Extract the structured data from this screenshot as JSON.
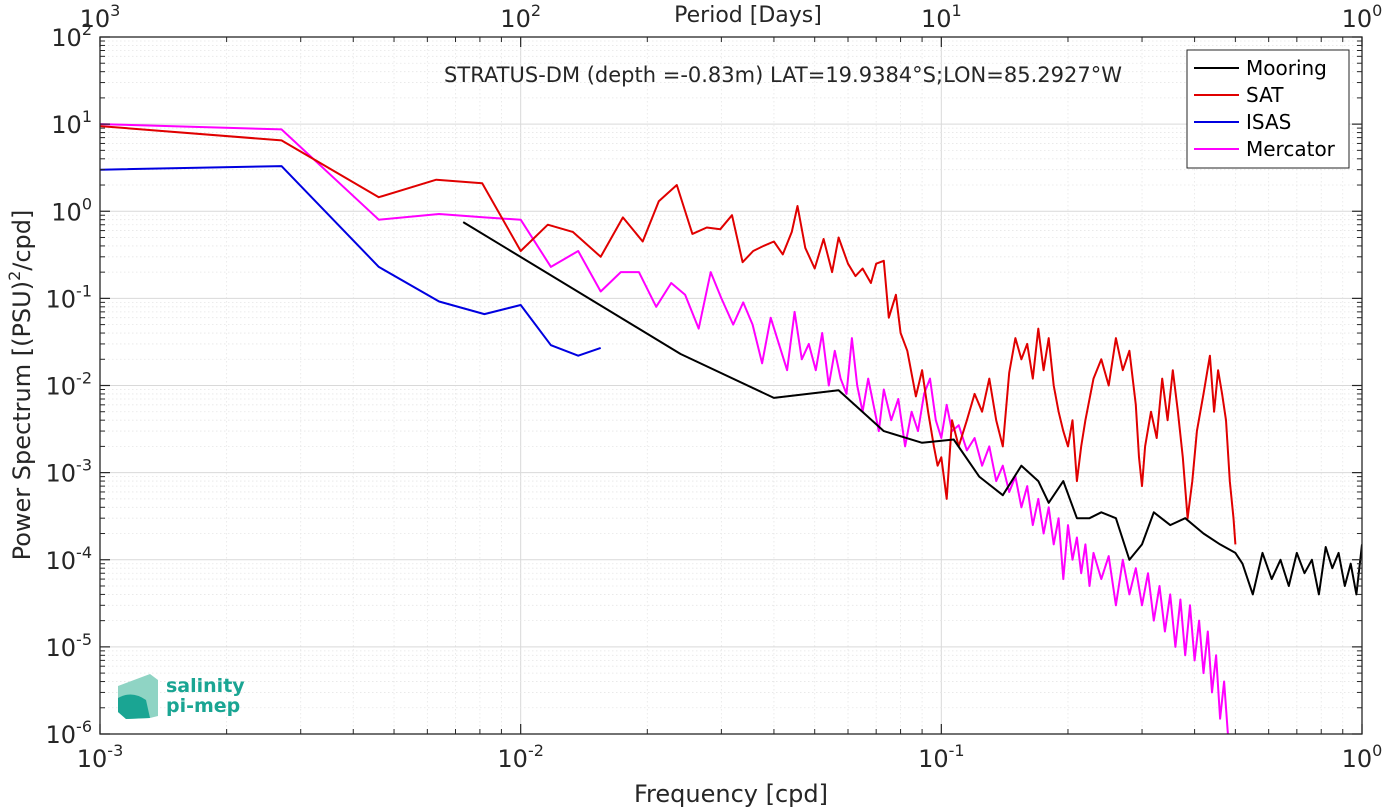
{
  "chart_data": {
    "type": "line",
    "title": "STRATUS-DM (depth =-0.83m) LAT=19.9384°S;LON=85.2927°W",
    "xlabel": "Frequency [cpd]",
    "ylabel": "Power Spectrum [(PSU)",
    "ylabel_sup": "2",
    "ylabel_tail": "/cpd]",
    "top_xlabel": "Period [Days]",
    "xscale": "log",
    "yscale": "log",
    "xlim": [
      0.001,
      1
    ],
    "ylim": [
      1e-06,
      100
    ],
    "grid": true,
    "minor_grid": true,
    "legend_position": "top-right",
    "x_ticks": [
      {
        "value": 0.001,
        "base": "10",
        "exp": "-3"
      },
      {
        "value": 0.01,
        "base": "10",
        "exp": "-2"
      },
      {
        "value": 0.1,
        "base": "10",
        "exp": "-1"
      },
      {
        "value": 1,
        "base": "10",
        "exp": "0"
      }
    ],
    "top_ticks": [
      {
        "value": 0.001,
        "base": "10",
        "exp": "3"
      },
      {
        "value": 0.01,
        "base": "10",
        "exp": "2"
      },
      {
        "value": 0.1,
        "base": "10",
        "exp": "1"
      },
      {
        "value": 1,
        "base": "10",
        "exp": "0"
      }
    ],
    "y_ticks": [
      {
        "value": 100,
        "base": "10",
        "exp": "2"
      },
      {
        "value": 10,
        "base": "10",
        "exp": "1"
      },
      {
        "value": 1,
        "base": "10",
        "exp": "0"
      },
      {
        "value": 0.1,
        "base": "10",
        "exp": "-1"
      },
      {
        "value": 0.01,
        "base": "10",
        "exp": "-2"
      },
      {
        "value": 0.001,
        "base": "10",
        "exp": "-3"
      },
      {
        "value": 0.0001,
        "base": "10",
        "exp": "-4"
      },
      {
        "value": 1e-05,
        "base": "10",
        "exp": "-5"
      },
      {
        "value": 1e-06,
        "base": "10",
        "exp": "-6"
      }
    ],
    "series": [
      {
        "name": "Mooring",
        "color": "#000000",
        "points": [
          [
            0.0073,
            0.75
          ],
          [
            0.024,
            0.023
          ],
          [
            0.04,
            0.0072
          ],
          [
            0.057,
            0.0088
          ],
          [
            0.073,
            0.003
          ],
          [
            0.09,
            0.0022
          ],
          [
            0.107,
            0.0024
          ],
          [
            0.123,
            0.0009
          ],
          [
            0.14,
            0.00055
          ],
          [
            0.155,
            0.0012
          ],
          [
            0.17,
            0.0008
          ],
          [
            0.18,
            0.00045
          ],
          [
            0.195,
            0.0008
          ],
          [
            0.21,
            0.0003
          ],
          [
            0.225,
            0.0003
          ],
          [
            0.24,
            0.00035
          ],
          [
            0.26,
            0.0003
          ],
          [
            0.28,
            0.0001
          ],
          [
            0.3,
            0.00015
          ],
          [
            0.32,
            0.00035
          ],
          [
            0.35,
            0.00025
          ],
          [
            0.38,
            0.0003
          ],
          [
            0.42,
            0.0002
          ],
          [
            0.46,
            0.00015
          ],
          [
            0.5,
            0.00012
          ],
          [
            0.52,
            9e-05
          ],
          [
            0.55,
            4e-05
          ],
          [
            0.58,
            0.00012
          ],
          [
            0.61,
            6e-05
          ],
          [
            0.64,
            0.0001
          ],
          [
            0.67,
            5e-05
          ],
          [
            0.7,
            0.00012
          ],
          [
            0.73,
            7e-05
          ],
          [
            0.76,
            0.0001
          ],
          [
            0.79,
            4e-05
          ],
          [
            0.82,
            0.00014
          ],
          [
            0.85,
            8e-05
          ],
          [
            0.88,
            0.00012
          ],
          [
            0.91,
            5e-05
          ],
          [
            0.94,
            9e-05
          ],
          [
            0.97,
            4e-05
          ],
          [
            1.0,
            0.00015
          ]
        ]
      },
      {
        "name": "SAT",
        "color": "#e00000",
        "points": [
          [
            0.001,
            9.5
          ],
          [
            0.0027,
            6.5
          ],
          [
            0.0046,
            1.45
          ],
          [
            0.0063,
            2.3
          ],
          [
            0.0081,
            2.1
          ],
          [
            0.01,
            0.35
          ],
          [
            0.0116,
            0.7
          ],
          [
            0.0133,
            0.58
          ],
          [
            0.0155,
            0.3
          ],
          [
            0.0175,
            0.85
          ],
          [
            0.0195,
            0.45
          ],
          [
            0.0213,
            1.3
          ],
          [
            0.0235,
            2.0
          ],
          [
            0.0256,
            0.55
          ],
          [
            0.0277,
            0.65
          ],
          [
            0.0298,
            0.62
          ],
          [
            0.0318,
            0.9
          ],
          [
            0.0337,
            0.26
          ],
          [
            0.0357,
            0.35
          ],
          [
            0.0378,
            0.4
          ],
          [
            0.04,
            0.45
          ],
          [
            0.042,
            0.32
          ],
          [
            0.0441,
            0.58
          ],
          [
            0.0455,
            1.15
          ],
          [
            0.0475,
            0.38
          ],
          [
            0.05,
            0.22
          ],
          [
            0.0525,
            0.48
          ],
          [
            0.055,
            0.2
          ],
          [
            0.057,
            0.5
          ],
          [
            0.06,
            0.25
          ],
          [
            0.0625,
            0.18
          ],
          [
            0.065,
            0.22
          ],
          [
            0.068,
            0.15
          ],
          [
            0.07,
            0.25
          ],
          [
            0.073,
            0.27
          ],
          [
            0.075,
            0.06
          ],
          [
            0.078,
            0.11
          ],
          [
            0.08,
            0.04
          ],
          [
            0.083,
            0.025
          ],
          [
            0.087,
            0.0075
          ],
          [
            0.09,
            0.015
          ],
          [
            0.093,
            0.005
          ],
          [
            0.096,
            0.002
          ],
          [
            0.098,
            0.0012
          ],
          [
            0.1,
            0.0015
          ],
          [
            0.103,
            0.0005
          ],
          [
            0.106,
            0.004
          ],
          [
            0.11,
            0.002
          ],
          [
            0.115,
            0.004
          ],
          [
            0.12,
            0.008
          ],
          [
            0.125,
            0.005
          ],
          [
            0.13,
            0.012
          ],
          [
            0.135,
            0.004
          ],
          [
            0.14,
            0.002
          ],
          [
            0.145,
            0.014
          ],
          [
            0.15,
            0.035
          ],
          [
            0.155,
            0.02
          ],
          [
            0.16,
            0.03
          ],
          [
            0.165,
            0.012
          ],
          [
            0.17,
            0.045
          ],
          [
            0.175,
            0.015
          ],
          [
            0.18,
            0.035
          ],
          [
            0.185,
            0.01
          ],
          [
            0.19,
            0.005
          ],
          [
            0.195,
            0.003
          ],
          [
            0.2,
            0.002
          ],
          [
            0.205,
            0.004
          ],
          [
            0.21,
            0.0008
          ],
          [
            0.215,
            0.002
          ],
          [
            0.22,
            0.004
          ],
          [
            0.23,
            0.012
          ],
          [
            0.24,
            0.02
          ],
          [
            0.25,
            0.01
          ],
          [
            0.26,
            0.035
          ],
          [
            0.27,
            0.015
          ],
          [
            0.28,
            0.025
          ],
          [
            0.29,
            0.006
          ],
          [
            0.295,
            0.0015
          ],
          [
            0.3,
            0.0007
          ],
          [
            0.305,
            0.002
          ],
          [
            0.315,
            0.005
          ],
          [
            0.325,
            0.0025
          ],
          [
            0.335,
            0.012
          ],
          [
            0.345,
            0.004
          ],
          [
            0.355,
            0.015
          ],
          [
            0.365,
            0.005
          ],
          [
            0.375,
            0.0015
          ],
          [
            0.385,
            0.0003
          ],
          [
            0.395,
            0.0008
          ],
          [
            0.405,
            0.003
          ],
          [
            0.42,
            0.008
          ],
          [
            0.435,
            0.022
          ],
          [
            0.445,
            0.005
          ],
          [
            0.455,
            0.015
          ],
          [
            0.465,
            0.008
          ],
          [
            0.475,
            0.004
          ],
          [
            0.485,
            0.0008
          ],
          [
            0.495,
            0.0003
          ],
          [
            0.5,
            0.00015
          ]
        ]
      },
      {
        "name": "ISAS",
        "color": "#0000e0",
        "points": [
          [
            0.001,
            3.0
          ],
          [
            0.0027,
            3.3
          ],
          [
            0.0046,
            0.23
          ],
          [
            0.0064,
            0.092
          ],
          [
            0.0082,
            0.066
          ],
          [
            0.01,
            0.084
          ],
          [
            0.0118,
            0.029
          ],
          [
            0.0137,
            0.022
          ],
          [
            0.0155,
            0.027
          ]
        ]
      },
      {
        "name": "Mercator",
        "color": "#ff00ff",
        "points": [
          [
            0.001,
            10.0
          ],
          [
            0.0027,
            8.7
          ],
          [
            0.0046,
            0.8
          ],
          [
            0.0064,
            0.93
          ],
          [
            0.0082,
            0.85
          ],
          [
            0.01,
            0.8
          ],
          [
            0.0118,
            0.23
          ],
          [
            0.0137,
            0.35
          ],
          [
            0.0155,
            0.12
          ],
          [
            0.0173,
            0.2
          ],
          [
            0.0191,
            0.2
          ],
          [
            0.021,
            0.08
          ],
          [
            0.0228,
            0.15
          ],
          [
            0.0246,
            0.11
          ],
          [
            0.0265,
            0.045
          ],
          [
            0.0283,
            0.2
          ],
          [
            0.03,
            0.1
          ],
          [
            0.032,
            0.05
          ],
          [
            0.0338,
            0.09
          ],
          [
            0.0356,
            0.05
          ],
          [
            0.0375,
            0.018
          ],
          [
            0.0393,
            0.06
          ],
          [
            0.0411,
            0.03
          ],
          [
            0.043,
            0.015
          ],
          [
            0.0448,
            0.07
          ],
          [
            0.0466,
            0.02
          ],
          [
            0.0484,
            0.03
          ],
          [
            0.0503,
            0.015
          ],
          [
            0.0521,
            0.04
          ],
          [
            0.054,
            0.01
          ],
          [
            0.0558,
            0.025
          ],
          [
            0.0576,
            0.012
          ],
          [
            0.0595,
            0.008
          ],
          [
            0.0613,
            0.035
          ],
          [
            0.0631,
            0.01
          ],
          [
            0.065,
            0.005
          ],
          [
            0.067,
            0.012
          ],
          [
            0.069,
            0.006
          ],
          [
            0.071,
            0.003
          ],
          [
            0.073,
            0.009
          ],
          [
            0.076,
            0.004
          ],
          [
            0.079,
            0.007
          ],
          [
            0.082,
            0.002
          ],
          [
            0.085,
            0.005
          ],
          [
            0.088,
            0.003
          ],
          [
            0.091,
            0.008
          ],
          [
            0.094,
            0.012
          ],
          [
            0.097,
            0.004
          ],
          [
            0.1,
            0.0025
          ],
          [
            0.103,
            0.006
          ],
          [
            0.106,
            0.003
          ],
          [
            0.11,
            0.0035
          ],
          [
            0.115,
            0.0018
          ],
          [
            0.12,
            0.0025
          ],
          [
            0.125,
            0.0012
          ],
          [
            0.13,
            0.002
          ],
          [
            0.135,
            0.0008
          ],
          [
            0.14,
            0.0012
          ],
          [
            0.145,
            0.0006
          ],
          [
            0.15,
            0.0009
          ],
          [
            0.155,
            0.0004
          ],
          [
            0.16,
            0.0007
          ],
          [
            0.165,
            0.00025
          ],
          [
            0.17,
            0.0005
          ],
          [
            0.175,
            0.0002
          ],
          [
            0.18,
            0.0004
          ],
          [
            0.185,
            0.00015
          ],
          [
            0.19,
            0.0003
          ],
          [
            0.195,
            6e-05
          ],
          [
            0.2,
            0.00025
          ],
          [
            0.205,
            0.0001
          ],
          [
            0.21,
            0.00018
          ],
          [
            0.215,
            7e-05
          ],
          [
            0.22,
            0.00015
          ],
          [
            0.225,
            5e-05
          ],
          [
            0.23,
            0.00012
          ],
          [
            0.24,
            6e-05
          ],
          [
            0.25,
            0.00011
          ],
          [
            0.26,
            3e-05
          ],
          [
            0.27,
            0.0001
          ],
          [
            0.28,
            4e-05
          ],
          [
            0.29,
            8e-05
          ],
          [
            0.3,
            3e-05
          ],
          [
            0.31,
            7e-05
          ],
          [
            0.32,
            2e-05
          ],
          [
            0.33,
            5e-05
          ],
          [
            0.34,
            1.5e-05
          ],
          [
            0.35,
            4e-05
          ],
          [
            0.36,
            1e-05
          ],
          [
            0.37,
            3.5e-05
          ],
          [
            0.38,
            8e-06
          ],
          [
            0.39,
            3e-05
          ],
          [
            0.4,
            7e-06
          ],
          [
            0.41,
            2e-05
          ],
          [
            0.42,
            5e-06
          ],
          [
            0.43,
            1.5e-05
          ],
          [
            0.44,
            3e-06
          ],
          [
            0.45,
            8e-06
          ],
          [
            0.46,
            1.5e-06
          ],
          [
            0.47,
            4e-06
          ],
          [
            0.48,
            1e-06
          ]
        ]
      }
    ]
  }
}
